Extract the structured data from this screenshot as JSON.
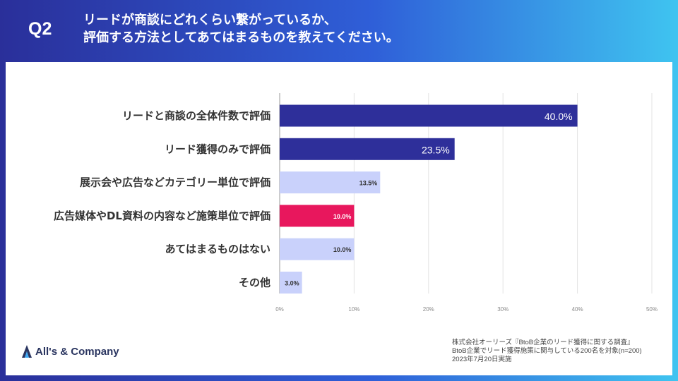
{
  "header": {
    "qnum": "Q2",
    "question_line1": "リードが商談にどれくらい繋がっているか、",
    "question_line2": "評価する方法としてあてはまるものを教えてください。"
  },
  "chart_data": {
    "type": "bar",
    "orientation": "horizontal",
    "title": "",
    "categories": [
      "リードと商談の全体件数で評価",
      "リード獲得のみで評価",
      "展示会や広告などカテゴリー単位で評価",
      "広告媒体やDL資料の内容など施策単位で評価",
      "あてはまるものはない",
      "その他"
    ],
    "values": [
      40.0,
      23.5,
      13.5,
      10.0,
      10.0,
      3.0
    ],
    "value_labels": [
      "40.0%",
      "23.5%",
      "13.5%",
      "10.0%",
      "10.0%",
      "3.0%"
    ],
    "bar_colors": [
      "#2e2f9a",
      "#2e2f9a",
      "#c9d1fb",
      "#e8175d",
      "#c9d1fb",
      "#c9d1fb"
    ],
    "label_colors": [
      "#ffffff",
      "#ffffff",
      "#333333",
      "#ffffff",
      "#333333",
      "#333333"
    ],
    "xlim": [
      0,
      50
    ],
    "xticks": [
      "0%",
      "10%",
      "20%",
      "30%",
      "40%",
      "50%"
    ],
    "xlabel": "",
    "ylabel": "",
    "grid": true
  },
  "logo": {
    "text": "All's & Company"
  },
  "source": {
    "line1": "株式会社オーリーズ『BtoB企業のリード獲得に関する調査』",
    "line2": "BtoB企業でリード獲得施策に関与している200名を対象(n=200)",
    "line3": "2023年7月20日実施"
  },
  "colors": {
    "accent_dark": "#2e2f9a",
    "accent_light": "#c9d1fb",
    "highlight": "#e8175d"
  }
}
